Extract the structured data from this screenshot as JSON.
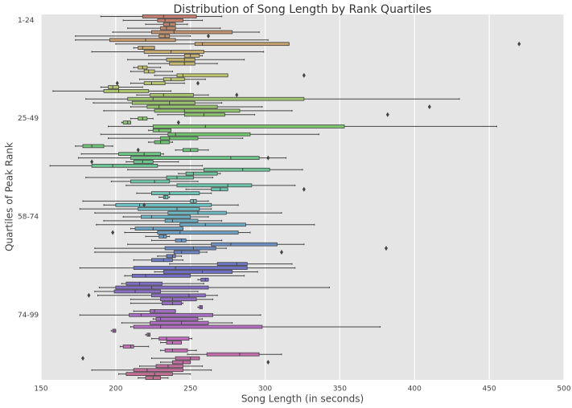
{
  "chart_data": {
    "type": "boxplot",
    "orientation": "horizontal",
    "title": "Distribution of Song Length by Rank Quartiles",
    "x_label": "Song Length (in seconds)",
    "y_label": "Quartiles of Peak Rank",
    "xlim": [
      150,
      500
    ],
    "xticks": [
      150,
      200,
      250,
      300,
      350,
      400,
      450,
      500
    ],
    "grid": true,
    "palette": "husl",
    "categories": [
      null,
      "1-24",
      null,
      null,
      null,
      null,
      null,
      null,
      null,
      null,
      null,
      null,
      null,
      null,
      null,
      null,
      null,
      null,
      null,
      null,
      null,
      null,
      null,
      null,
      null,
      null,
      "25-49",
      null,
      null,
      null,
      null,
      null,
      null,
      null,
      null,
      null,
      null,
      null,
      null,
      null,
      null,
      null,
      null,
      null,
      null,
      null,
      null,
      null,
      null,
      null,
      null,
      "58-74",
      null,
      null,
      null,
      null,
      null,
      null,
      null,
      null,
      null,
      null,
      null,
      null,
      null,
      null,
      null,
      null,
      null,
      null,
      null,
      null,
      null,
      null,
      null,
      null,
      "74-99",
      null,
      null,
      null,
      null,
      null,
      null,
      null,
      null,
      null,
      null,
      null,
      null,
      null,
      null,
      null,
      null
    ],
    "boxes": [
      [
        190,
        218,
        232,
        254,
        271
      ],
      [
        205,
        228,
        233,
        245,
        258
      ],
      [
        220,
        232,
        236,
        240,
        248
      ],
      [
        208,
        230,
        234,
        240,
        270
      ],
      [
        198,
        224,
        239,
        278,
        296
      ],
      [
        173,
        229,
        233,
        236,
        250
      ],
      [
        173,
        196,
        220,
        240,
        302
      ],
      [
        200,
        253,
        258,
        316,
        316
      ],
      [
        212,
        215,
        218,
        226,
        226
      ],
      [
        184,
        219,
        237,
        259,
        299
      ],
      [
        222,
        246,
        250,
        256,
        258
      ],
      [
        208,
        234,
        246,
        253,
        286
      ],
      [
        222,
        236,
        246,
        253,
        268
      ],
      [
        212,
        215,
        218,
        221,
        230
      ],
      [
        210,
        219,
        222,
        226,
        238
      ],
      [
        226,
        241,
        245,
        275,
        275
      ],
      [
        216,
        232,
        237,
        246,
        260
      ],
      [
        210,
        219,
        224,
        233,
        246
      ],
      [
        190,
        195,
        198,
        202,
        218
      ],
      [
        158,
        192,
        202,
        222,
        237
      ],
      [
        214,
        223,
        232,
        252,
        262
      ],
      [
        180,
        208,
        225,
        326,
        430
      ],
      [
        185,
        211,
        236,
        253,
        271
      ],
      [
        210,
        221,
        229,
        268,
        298
      ],
      [
        192,
        226,
        246,
        283,
        318
      ],
      [
        228,
        246,
        259,
        273,
        293
      ],
      [
        210,
        215,
        218,
        221,
        225
      ],
      [
        204,
        205,
        208,
        210,
        210
      ],
      [
        195,
        225,
        260,
        353,
        455
      ],
      [
        222,
        225,
        229,
        237,
        237
      ],
      [
        190,
        235,
        240,
        290,
        336
      ],
      [
        195,
        230,
        236,
        255,
        285
      ],
      [
        222,
        226,
        230,
        236,
        238
      ],
      [
        173,
        178,
        184,
        192,
        198
      ],
      [
        240,
        245,
        250,
        255,
        262
      ],
      [
        177,
        202,
        219,
        230,
        232
      ],
      [
        175,
        210,
        277,
        296,
        314
      ],
      [
        207,
        212,
        218,
        225,
        242
      ],
      [
        156,
        184,
        198,
        228,
        258
      ],
      [
        208,
        259,
        285,
        303,
        325
      ],
      [
        242,
        247,
        252,
        268,
        270
      ],
      [
        180,
        234,
        241,
        252,
        265
      ],
      [
        197,
        210,
        226,
        236,
        255
      ],
      [
        207,
        241,
        275,
        291,
        320
      ],
      [
        247,
        264,
        270,
        275,
        275
      ],
      [
        214,
        224,
        236,
        256,
        264
      ],
      [
        229,
        232,
        233,
        235,
        236
      ],
      [
        178,
        250,
        252,
        254,
        262
      ],
      [
        192,
        200,
        216,
        264,
        282
      ],
      [
        176,
        215,
        241,
        256,
        264
      ],
      [
        186,
        235,
        255,
        274,
        311
      ],
      [
        205,
        217,
        224,
        250,
        262
      ],
      [
        192,
        233,
        238,
        255,
        271
      ],
      [
        187,
        243,
        260,
        287,
        333
      ],
      [
        210,
        213,
        225,
        245,
        245
      ],
      [
        206,
        228,
        243,
        282,
        290
      ],
      [
        220,
        229,
        232,
        234,
        236
      ],
      [
        224,
        240,
        244,
        247,
        271
      ],
      [
        208,
        264,
        277,
        308,
        326
      ],
      [
        186,
        233,
        252,
        267,
        274
      ],
      [
        186,
        239,
        244,
        256,
        261
      ],
      [
        228,
        234,
        238,
        240,
        244
      ],
      [
        212,
        224,
        232,
        238,
        245
      ],
      [
        236,
        268,
        281,
        288,
        318
      ],
      [
        176,
        212,
        240,
        288,
        320
      ],
      [
        226,
        232,
        258,
        278,
        295
      ],
      [
        206,
        211,
        220,
        250,
        286
      ],
      [
        255,
        257,
        260,
        262,
        262
      ],
      [
        204,
        207,
        216,
        231,
        259
      ],
      [
        189,
        200,
        224,
        262,
        343
      ],
      [
        186,
        199,
        213,
        230,
        255
      ],
      [
        188,
        224,
        249,
        260,
        268
      ],
      [
        210,
        230,
        238,
        254,
        265
      ],
      [
        210,
        231,
        238,
        244,
        245
      ],
      [
        255,
        256,
        257,
        258,
        258
      ],
      [
        212,
        223,
        226,
        240,
        240
      ],
      [
        176,
        209,
        217,
        265,
        297
      ],
      [
        225,
        227,
        230,
        255,
        258
      ],
      [
        204,
        223,
        244,
        262,
        278
      ],
      [
        210,
        212,
        230,
        298,
        377
      ],
      [
        197,
        198,
        199,
        200,
        200
      ],
      [
        220,
        221,
        222,
        223,
        223
      ],
      [
        224,
        229,
        234,
        249,
        251
      ],
      [
        230,
        234,
        238,
        244,
        244
      ],
      [
        203,
        205,
        210,
        212,
        222
      ],
      [
        230,
        233,
        238,
        248,
        254
      ],
      [
        248,
        261,
        283,
        296,
        311
      ],
      [
        224,
        240,
        250,
        256,
        256
      ],
      [
        230,
        238,
        245,
        250,
        250
      ],
      [
        216,
        227,
        235,
        245,
        258
      ],
      [
        184,
        212,
        221,
        245,
        264
      ],
      [
        202,
        207,
        226,
        238,
        250
      ],
      [
        215,
        220,
        225,
        230,
        235
      ]
    ],
    "outliers": [
      [],
      [],
      [],
      [],
      [],
      [
        262
      ],
      [],
      [
        470
      ],
      [],
      [],
      [],
      [],
      [],
      [],
      [],
      [
        326
      ],
      [],
      [
        201,
        255
      ],
      [],
      [],
      [
        281
      ],
      [],
      [],
      [
        410
      ],
      [],
      [
        382
      ],
      [],
      [
        242
      ],
      [],
      [],
      [],
      [],
      [],
      [],
      [
        215
      ],
      [],
      [
        302
      ],
      [
        184
      ],
      [],
      [],
      [],
      [],
      [],
      [],
      [
        326
      ],
      [],
      [],
      [],
      [
        219
      ],
      [],
      [],
      [],
      [],
      [],
      [],
      [
        198
      ],
      [],
      [],
      [],
      [
        381
      ],
      [
        311
      ],
      [],
      [],
      [],
      [],
      [],
      [],
      [],
      [],
      [],
      [],
      [
        182
      ],
      [],
      [],
      [],
      [],
      [],
      [],
      [],
      [],
      [],
      [],
      [],
      [],
      [],
      [],
      [],
      [
        178
      ],
      [
        302
      ],
      [],
      [],
      [],
      []
    ]
  }
}
